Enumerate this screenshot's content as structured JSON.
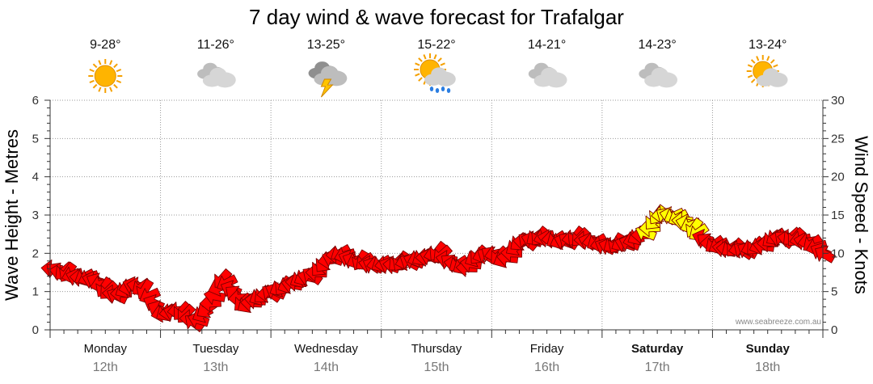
{
  "chart_data": {
    "type": "line",
    "title": "7 day wind & wave forecast for Trafalgar",
    "ylabel_left": "Wave Height - Metres",
    "ylabel_right": "Wind Speed - Knots",
    "ylim_left": [
      0,
      6
    ],
    "ylim_right": [
      0,
      30
    ],
    "yticks_left": [
      "0",
      "1",
      "2",
      "3",
      "4",
      "5",
      "6"
    ],
    "yticks_right": [
      "0",
      "5",
      "10",
      "15",
      "20",
      "25",
      "30"
    ],
    "days": [
      {
        "name": "Monday",
        "date": "12th",
        "temp": "9-28°",
        "icon": "sunny-icon",
        "bold": false
      },
      {
        "name": "Tuesday",
        "date": "13th",
        "temp": "11-26°",
        "icon": "cloudy-icon",
        "bold": false
      },
      {
        "name": "Wednesday",
        "date": "14th",
        "temp": "13-25°",
        "icon": "storm-icon",
        "bold": false
      },
      {
        "name": "Thursday",
        "date": "15th",
        "temp": "15-22°",
        "icon": "sun-showers-icon",
        "bold": false
      },
      {
        "name": "Friday",
        "date": "16th",
        "temp": "14-21°",
        "icon": "cloudy-icon",
        "bold": false
      },
      {
        "name": "Saturday",
        "date": "17th",
        "temp": "14-23°",
        "icon": "cloudy-icon",
        "bold": true
      },
      {
        "name": "Sunday",
        "date": "18th",
        "temp": "13-24°",
        "icon": "partly-cloudy-icon",
        "bold": true
      }
    ],
    "series": [
      {
        "name": "Wind Speed (knots) with direction arrows",
        "x": [
          0.0,
          0.2,
          0.4,
          0.5,
          0.6,
          0.75,
          0.85,
          1.0,
          1.15,
          1.3,
          1.4,
          1.55,
          1.65,
          1.75,
          1.85,
          2.0,
          2.1,
          2.25,
          2.4,
          2.5,
          2.6,
          2.75,
          2.9,
          3.0,
          3.1,
          3.25,
          3.4,
          3.5,
          3.6,
          3.75,
          3.85,
          4.0,
          4.1,
          4.25,
          4.4,
          4.5,
          4.6,
          4.75,
          4.9,
          5.0,
          5.1,
          5.25,
          5.4,
          5.5,
          5.6,
          5.75,
          5.9,
          6.0,
          6.15,
          6.3,
          6.45,
          6.55,
          6.7,
          6.85,
          7.0
        ],
        "values": [
          8,
          7,
          6.5,
          5,
          4.5,
          6,
          5,
          2,
          2.5,
          1,
          2.5,
          6.5,
          5,
          3,
          4,
          5,
          5.5,
          6.5,
          7.5,
          9,
          10,
          9,
          8.5,
          8.5,
          8.5,
          9,
          9.5,
          10,
          9,
          8,
          9.5,
          10,
          9,
          11.5,
          12,
          12,
          11.5,
          12,
          11.5,
          11,
          11,
          11.5,
          13,
          15,
          15,
          14,
          12,
          11,
          10.5,
          10.5,
          11,
          12,
          12,
          11.5,
          10
        ],
        "color_low": "#ff0000",
        "color_high": "#ffff00",
        "threshold": 12.5
      }
    ],
    "credit": "www.seabreeze.com.au"
  }
}
